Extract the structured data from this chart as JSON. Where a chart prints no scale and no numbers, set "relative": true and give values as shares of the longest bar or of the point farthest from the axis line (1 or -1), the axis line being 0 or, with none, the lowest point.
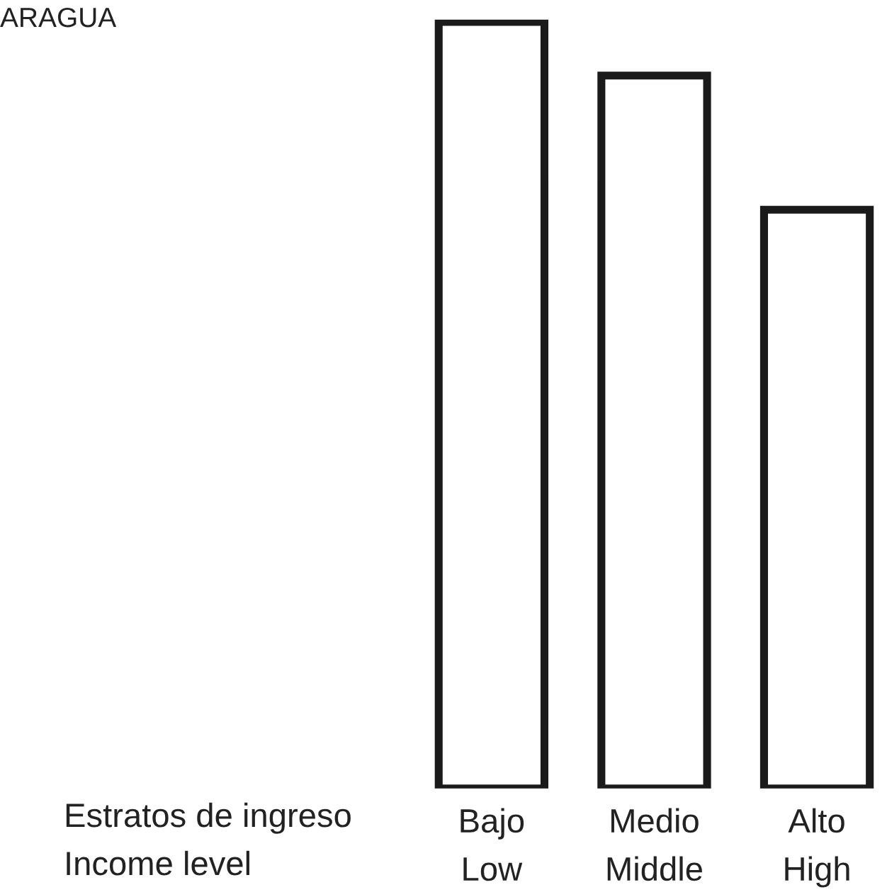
{
  "chart_data": {
    "type": "bar",
    "title": "ARAGUA",
    "xlabel": "Estratos de ingreso\nIncome level",
    "categories": [
      "Bajo\nLow",
      "Medio\nMiddle",
      "Alto\nHigh"
    ],
    "values": [
      1,
      0.93,
      0.755
    ],
    "color": "#1a1a1a",
    "relative": true,
    "grid": false,
    "legend": false
  }
}
